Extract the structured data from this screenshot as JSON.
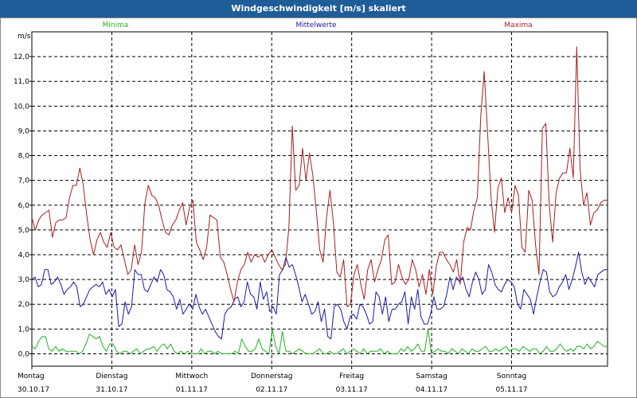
{
  "window": {
    "title": "Windgeschwindigkeit [m/s] skaliert"
  },
  "colors": {
    "minima": "#22b022",
    "mittelwerte": "#1a1aa8",
    "maxima": "#a81e1e",
    "grid": "#000000",
    "titlebar": "#1f5d99"
  },
  "chart_data": {
    "type": "line",
    "title": "Windgeschwindigkeit [m/s] skaliert",
    "ylabel": "m/s",
    "ylim": [
      -0.5,
      13.0
    ],
    "yticks": [
      "0,0",
      "1,0",
      "2,0",
      "3,0",
      "4,0",
      "5,0",
      "6,0",
      "7,0",
      "8,0",
      "9,0",
      "10,0",
      "11,0",
      "12,0"
    ],
    "ytick_values": [
      0,
      1,
      2,
      3,
      4,
      5,
      6,
      7,
      8,
      9,
      10,
      11,
      12
    ],
    "xlim": [
      0,
      7.2
    ],
    "xticks": [
      {
        "day": "Montag",
        "date": "30.10.17",
        "pos": 0
      },
      {
        "day": "Dienstag",
        "date": "31.10.17",
        "pos": 1
      },
      {
        "day": "Mittwoch",
        "date": "01.11.17",
        "pos": 2
      },
      {
        "day": "Donnerstag",
        "date": "02.11.17",
        "pos": 3
      },
      {
        "day": "Freitag",
        "date": "03.11.17",
        "pos": 4
      },
      {
        "day": "Samstag",
        "date": "04.11.17",
        "pos": 5
      },
      {
        "day": "Sonntag",
        "date": "05.11.17",
        "pos": 6
      }
    ],
    "series": [
      {
        "name": "Minima",
        "color": "#22b022",
        "values": [
          0.3,
          0.2,
          0.5,
          0.7,
          0.7,
          0.2,
          0.1,
          0.3,
          0.1,
          0.2,
          0.1,
          0.1,
          0.1,
          0.1,
          0.0,
          0.1,
          0.4,
          0.8,
          0.7,
          0.6,
          0.7,
          0.3,
          0.1,
          0.4,
          0.4,
          0.1,
          0.0,
          0.1,
          0.1,
          0.0,
          0.1,
          0.2,
          0.0,
          0.1,
          0.2,
          0.2,
          0.3,
          0.1,
          0.3,
          0.4,
          0.2,
          0.4,
          0.1,
          0.0,
          0.1,
          0.0,
          0.1,
          0.0,
          0.0,
          0.0,
          0.2,
          0.0,
          0.1,
          0.1,
          0.0,
          0.1,
          0.0,
          0.0,
          0.0,
          0.0,
          0.1,
          0.0,
          0.6,
          0.3,
          0.1,
          0.1,
          0.2,
          0.6,
          0.2,
          0.1,
          0.0,
          1.0,
          0.3,
          0.0,
          0.9,
          0.1,
          0.1,
          0.0,
          0.1,
          0.2,
          0.1,
          0.0,
          0.0,
          0.0,
          0.1,
          0.2,
          0.0,
          0.0,
          0.1,
          0.0,
          0.0,
          0.1,
          0.2,
          0.0,
          0.1,
          0.2,
          0.1,
          0.0,
          0.2,
          0.0,
          0.1,
          0.1,
          0.1,
          0.2,
          0.0,
          0.1,
          0.0,
          0.0,
          0.0,
          0.2,
          0.1,
          0.3,
          0.1,
          0.2,
          0.4,
          0.1,
          0.1,
          1.0,
          0.0,
          0.1,
          0.2,
          0.1,
          0.1,
          0.0,
          0.2,
          0.1,
          0.0,
          0.2,
          0.1,
          0.0,
          0.2,
          0.1,
          0.1,
          0.2,
          0.3,
          0.1,
          0.1,
          0.2,
          0.1,
          0.2,
          0.3,
          0.1,
          0.2,
          0.2,
          0.1,
          0.3,
          0.2,
          0.1,
          0.2,
          0.2,
          0.0,
          0.1,
          0.3,
          0.1,
          0.1,
          0.2,
          0.4,
          0.2,
          0.1,
          0.2,
          0.1,
          0.3,
          0.3,
          0.2,
          0.4,
          0.2,
          0.3,
          0.5,
          0.4,
          0.3,
          0.3
        ]
      },
      {
        "name": "Mittelwerte",
        "color": "#1a1aa8",
        "values": [
          3.0,
          3.1,
          2.7,
          2.8,
          3.4,
          3.4,
          2.8,
          2.9,
          3.1,
          2.8,
          2.4,
          2.6,
          2.7,
          2.9,
          2.7,
          1.9,
          2.0,
          2.3,
          2.6,
          2.7,
          2.8,
          2.7,
          2.9,
          2.4,
          2.6,
          2.3,
          2.6,
          1.1,
          1.2,
          2.1,
          1.6,
          1.9,
          3.4,
          3.2,
          3.2,
          2.6,
          2.5,
          2.8,
          3.1,
          2.9,
          3.4,
          3.2,
          2.6,
          2.5,
          2.3,
          1.8,
          2.2,
          1.6,
          1.8,
          2.0,
          1.8,
          2.4,
          1.9,
          1.6,
          1.8,
          1.5,
          1.2,
          0.9,
          0.7,
          0.6,
          1.6,
          1.8,
          1.9,
          2.2,
          2.3,
          1.9,
          2.1,
          2.9,
          2.4,
          2.3,
          1.8,
          2.9,
          2.2,
          2.5,
          1.7,
          1.9,
          1.6,
          3.2,
          3.4,
          3.9,
          3.5,
          3.6,
          3.2,
          2.7,
          2.1,
          2.4,
          2.0,
          1.6,
          1.7,
          2.1,
          1.3,
          1.8,
          0.7,
          0.6,
          1.9,
          2.0,
          1.8,
          1.3,
          1.0,
          1.5,
          1.6,
          1.4,
          2.0,
          1.9,
          1.6,
          1.2,
          1.3,
          2.5,
          2.3,
          1.6,
          2.3,
          1.3,
          1.8,
          1.8,
          2.0,
          2.1,
          2.5,
          1.2,
          2.3,
          1.8,
          2.6,
          1.5,
          1.2,
          1.2,
          1.6,
          2.3,
          1.8,
          1.8,
          1.9,
          2.4,
          3.1,
          2.6,
          3.1,
          2.9,
          3.1,
          2.6,
          2.3,
          2.9,
          3.3,
          3.0,
          2.4,
          2.6,
          3.6,
          3.3,
          2.8,
          2.6,
          2.5,
          2.8,
          3.0,
          2.9,
          2.7,
          2.0,
          1.8,
          2.6,
          2.4,
          2.2,
          1.6,
          2.3,
          2.9,
          3.4,
          3.3,
          2.5,
          2.3,
          2.4,
          2.7,
          2.9,
          3.2,
          2.6,
          3.0,
          3.5,
          4.1,
          3.3,
          2.8,
          3.1,
          2.9,
          2.7,
          3.2,
          3.3,
          3.4,
          3.4
        ]
      },
      {
        "name": "Maxima",
        "color": "#a81e1e",
        "values": [
          5.5,
          5.0,
          5.4,
          5.6,
          5.7,
          5.8,
          4.7,
          5.3,
          5.4,
          5.4,
          5.5,
          6.3,
          6.8,
          6.8,
          7.5,
          6.8,
          5.6,
          4.6,
          4.0,
          4.6,
          4.9,
          4.5,
          4.3,
          4.9,
          4.3,
          4.2,
          4.4,
          3.8,
          3.2,
          3.4,
          4.4,
          3.6,
          4.1,
          6.1,
          6.8,
          6.4,
          6.3,
          6.0,
          5.4,
          4.9,
          4.8,
          5.2,
          5.4,
          5.8,
          6.1,
          5.2,
          5.9,
          6.2,
          4.5,
          4.2,
          3.8,
          4.3,
          5.6,
          5.5,
          5.4,
          3.9,
          3.7,
          3.2,
          2.6,
          2.1,
          2.9,
          3.4,
          3.6,
          4.1,
          3.7,
          4.0,
          3.9,
          4.0,
          3.7,
          4.0,
          4.2,
          3.9,
          3.6,
          3.4,
          3.6,
          5.1,
          9.2,
          6.6,
          6.8,
          8.3,
          7.0,
          8.1,
          7.2,
          5.8,
          4.2,
          3.7,
          5.5,
          6.6,
          5.3,
          3.3,
          3.1,
          3.8,
          1.9,
          2.0,
          3.2,
          3.6,
          2.8,
          2.2,
          3.4,
          3.8,
          2.9,
          3.4,
          3.8,
          4.6,
          4.8,
          2.8,
          2.9,
          3.6,
          3.1,
          2.8,
          3.0,
          3.8,
          3.4,
          2.7,
          3.2,
          2.4,
          3.4,
          2.4,
          3.5,
          4.1,
          4.1,
          3.8,
          3.6,
          3.3,
          3.8,
          2.8,
          4.5,
          5.1,
          5.0,
          5.8,
          6.3,
          9.6,
          11.4,
          8.9,
          6.3,
          4.9,
          6.7,
          7.1,
          5.7,
          6.3,
          5.7,
          6.8,
          6.4,
          4.3,
          4.1,
          6.6,
          6.2,
          4.4,
          3.2,
          9.1,
          9.3,
          6.0,
          4.5,
          6.5,
          7.1,
          7.3,
          7.3,
          8.3,
          7.1,
          12.4,
          7.4,
          6.0,
          6.5,
          5.2,
          5.7,
          5.8,
          6.1,
          6.2,
          6.2
        ]
      }
    ]
  }
}
